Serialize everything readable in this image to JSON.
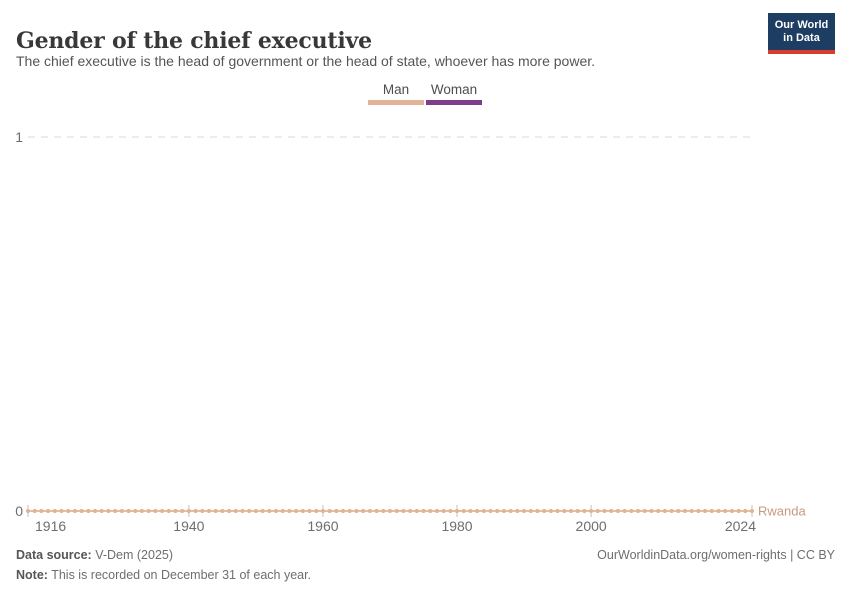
{
  "header": {
    "title": "Gender of the chief executive",
    "subtitle": "The chief executive is the head of government or the head of state, whoever has more power.",
    "logo": {
      "line1": "Our World",
      "line2": "in Data"
    }
  },
  "legend": {
    "items": [
      {
        "label": "Man",
        "color": "#e2b496"
      },
      {
        "label": "Woman",
        "color": "#7f3c8d"
      }
    ]
  },
  "chart_data": {
    "type": "line",
    "title": "Gender of the chief executive",
    "subtitle": "The chief executive is the head of government or the head of state, whoever has more power.",
    "legend_position": "top-center",
    "legend_entries": [
      "Man",
      "Woman"
    ],
    "xlim": [
      1916,
      2024
    ],
    "ylim": [
      0,
      1
    ],
    "x_ticks": [
      1916,
      1940,
      1960,
      1980,
      2000,
      2024
    ],
    "y_ticks": [
      0,
      1
    ],
    "gridline": {
      "at_y": 1,
      "style": "dashed"
    },
    "series": [
      {
        "name": "Rwanda",
        "category": "Man",
        "color": "#e2b496",
        "label_color": "#c79a7d",
        "marker": "circle",
        "x_start": 1916,
        "x_end": 2024,
        "x_step": 1,
        "constant_y": 0
      }
    ]
  },
  "footer": {
    "data_source_label": "Data source:",
    "data_source_value": " V-Dem (2025)",
    "credit": "OurWorldinData.org/women-rights | CC BY",
    "note_label": "Note:",
    "note_value": " This is recorded on December 31 of each year."
  },
  "colors": {
    "man_tan": "#e2b496",
    "woman_purple": "#7f3c8d",
    "entity_label": "#c79a7d",
    "logo_navy": "#1d3d63",
    "logo_red": "#d73c2c",
    "grid": "#d9d9d9",
    "axis_text": "#6e6e6e"
  }
}
